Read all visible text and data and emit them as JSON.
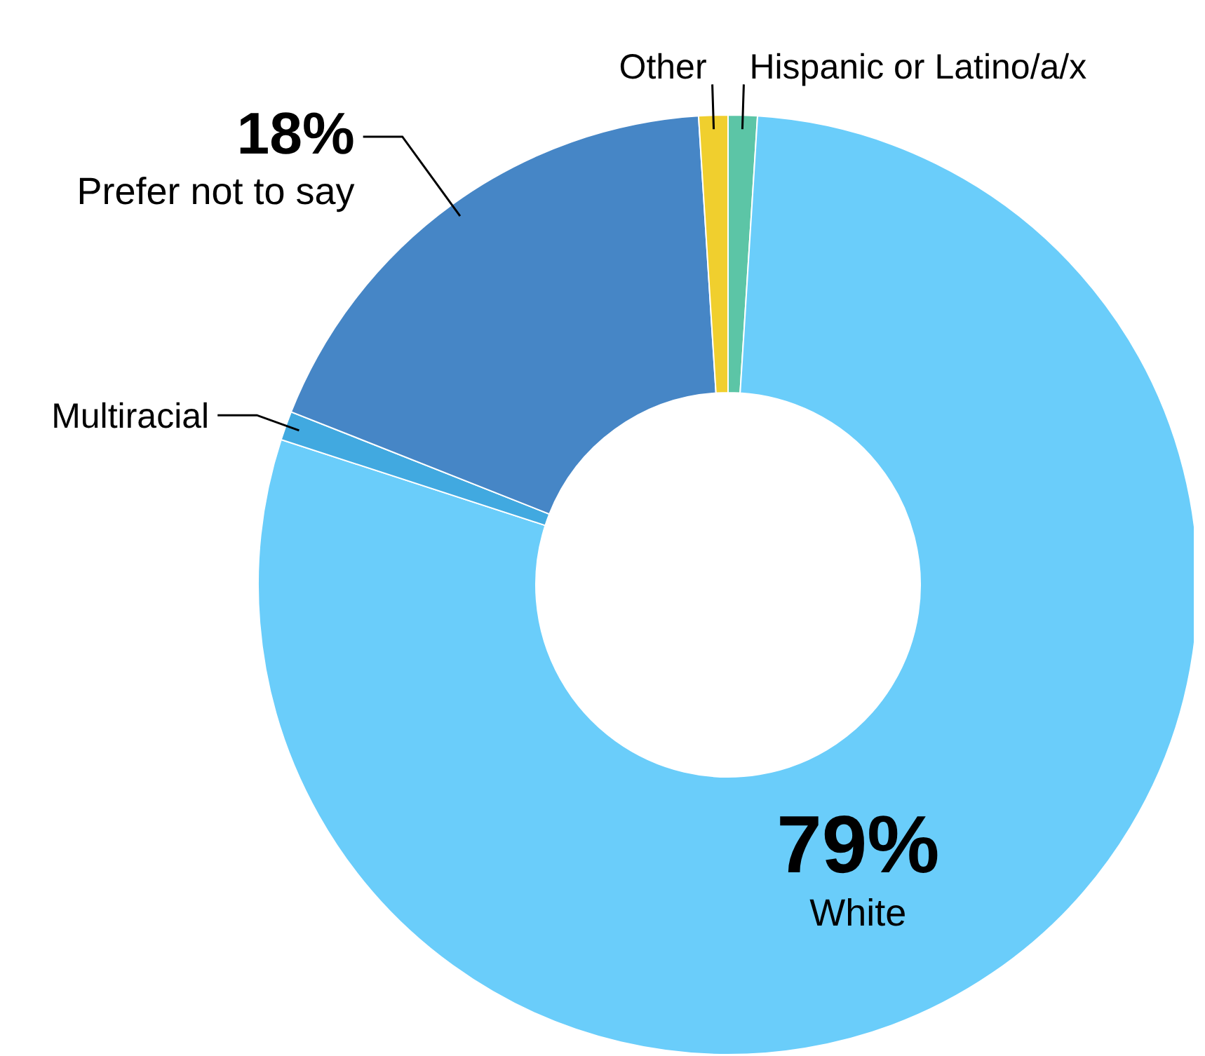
{
  "chart_data": {
    "type": "donut",
    "categories": [
      "Hispanic or Latino/a/x",
      "White",
      "Multiracial",
      "Prefer not to say",
      "Other"
    ],
    "values": [
      1,
      79,
      1,
      18,
      1
    ],
    "colors": [
      "#5cc5a6",
      "#6acdfa",
      "#41a9e0",
      "#4686c6",
      "#f0cf2e"
    ],
    "value_labels": [
      null,
      "79%",
      null,
      "18%",
      null
    ],
    "legend": false
  }
}
